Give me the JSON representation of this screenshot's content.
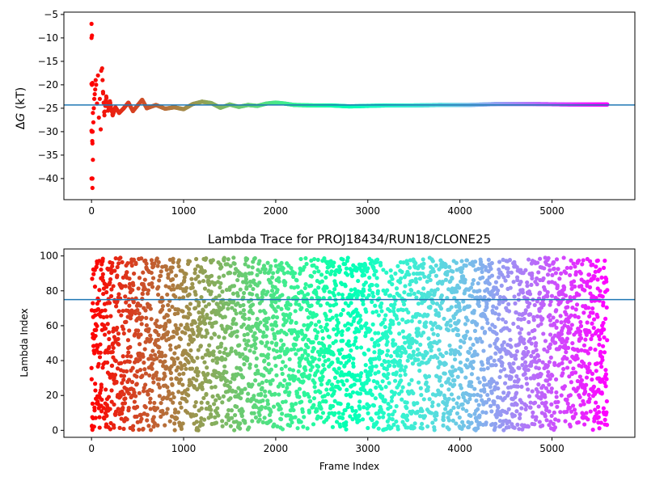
{
  "chart_data": [
    {
      "type": "scatter",
      "title": "",
      "xlabel": "",
      "ylabel": "ΔG (kT)",
      "ylabel_prefix": "Δ",
      "ylabel_var": "G",
      "ylabel_unit": " (kT)",
      "xlim": [
        -300,
        5900
      ],
      "ylim": [
        -44.5,
        -4.5
      ],
      "xticks": [
        0,
        1000,
        2000,
        3000,
        4000,
        5000
      ],
      "yticks": [
        -40,
        -35,
        -30,
        -25,
        -20,
        -15,
        -10,
        -5
      ],
      "hline": -24.3,
      "hline_color": "#1f77b4",
      "colormap": "rainbow",
      "series": [
        {
          "points": [
            [
              0,
              -7
            ],
            [
              0,
              -10
            ],
            [
              5,
              -9.5
            ],
            [
              0,
              -19.8
            ],
            [
              5,
              -20
            ],
            [
              10,
              -19.6
            ],
            [
              0,
              -29.8
            ],
            [
              3,
              -30
            ],
            [
              8,
              -32
            ],
            [
              10,
              -32.5
            ],
            [
              12,
              -30
            ],
            [
              15,
              -36
            ],
            [
              0,
              -40
            ],
            [
              6,
              -40
            ],
            [
              10,
              -40
            ],
            [
              10,
              -42
            ],
            [
              15,
              -26
            ],
            [
              20,
              -28
            ],
            [
              25,
              -25
            ],
            [
              30,
              -23
            ],
            [
              35,
              -22
            ],
            [
              40,
              -21
            ],
            [
              45,
              -19
            ],
            [
              50,
              -20
            ],
            [
              60,
              -24
            ],
            [
              70,
              -18
            ],
            [
              80,
              -27
            ],
            [
              90,
              -23
            ],
            [
              100,
              -29.5
            ],
            [
              105,
              -17
            ],
            [
              115,
              -16.5
            ],
            [
              125,
              -21.5
            ],
            [
              140,
              -26.5
            ],
            [
              160,
              -22.5
            ],
            [
              180,
              -25.5
            ],
            [
              200,
              -23.5
            ],
            [
              230,
              -26.5
            ],
            [
              260,
              -24.8
            ],
            [
              300,
              -26
            ],
            [
              350,
              -25
            ],
            [
              400,
              -23.8
            ],
            [
              450,
              -25.6
            ],
            [
              500,
              -24.4
            ],
            [
              550,
              -23.2
            ],
            [
              600,
              -25
            ],
            [
              700,
              -24.3
            ],
            [
              800,
              -25.1
            ],
            [
              900,
              -24.8
            ],
            [
              1000,
              -25.2
            ],
            [
              1100,
              -24.1
            ],
            [
              1200,
              -23.6
            ],
            [
              1300,
              -23.9
            ],
            [
              1400,
              -24.9
            ],
            [
              1500,
              -24.2
            ],
            [
              1600,
              -24.7
            ],
            [
              1700,
              -24.3
            ],
            [
              1800,
              -24.5
            ],
            [
              1900,
              -24.0
            ],
            [
              2000,
              -23.8
            ],
            [
              2100,
              -24.0
            ],
            [
              2200,
              -24.3
            ],
            [
              2400,
              -24.4
            ],
            [
              2600,
              -24.4
            ],
            [
              2800,
              -24.6
            ],
            [
              3000,
              -24.5
            ],
            [
              3200,
              -24.4
            ],
            [
              3500,
              -24.4
            ],
            [
              3800,
              -24.3
            ],
            [
              4100,
              -24.3
            ],
            [
              4400,
              -24.1
            ],
            [
              4800,
              -24.1
            ],
            [
              5200,
              -24.2
            ],
            [
              5600,
              -24.2
            ]
          ]
        }
      ]
    },
    {
      "type": "scatter",
      "title": "Lambda Trace for PROJ18434/RUN18/CLONE25",
      "xlabel": "Frame Index",
      "ylabel": "Lambda Index",
      "xlim": [
        -300,
        5900
      ],
      "ylim": [
        -4,
        104
      ],
      "xticks": [
        0,
        1000,
        2000,
        3000,
        4000,
        5000
      ],
      "yticks": [
        0,
        20,
        40,
        60,
        80,
        100
      ],
      "hline": 75,
      "hline_color": "#1f77b4",
      "colormap": "rainbow",
      "frame_count": 5600,
      "lambda_range": [
        0,
        99
      ]
    }
  ]
}
